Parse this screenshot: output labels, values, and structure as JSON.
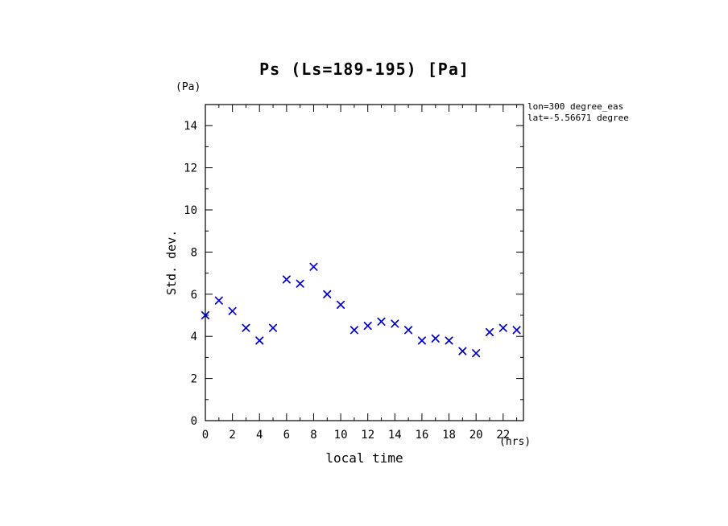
{
  "chart_data": {
    "type": "scatter",
    "title": "Ps (Ls=189-195) [Pa]",
    "xlabel": "local time",
    "ylabel": "Std. dev.",
    "x_unit": "(hrs)",
    "y_unit": "(Pa)",
    "annotations": [
      "lon=300 degree_eas",
      "lat=-5.56671 degree"
    ],
    "marker": "x",
    "marker_color": "#0000cc",
    "axis_color": "#000000",
    "xlim": [
      0,
      23.5
    ],
    "ylim": [
      0,
      15
    ],
    "x_major_ticks": [
      0,
      2,
      4,
      6,
      8,
      10,
      12,
      14,
      16,
      18,
      20,
      22
    ],
    "y_major_ticks": [
      0,
      2,
      4,
      6,
      8,
      10,
      12,
      14
    ],
    "grid": false,
    "legend": "none",
    "x": [
      0,
      1,
      2,
      3,
      4,
      5,
      6,
      7,
      8,
      9,
      10,
      11,
      12,
      13,
      14,
      15,
      16,
      17,
      18,
      19,
      20,
      21,
      22,
      23
    ],
    "y": [
      5.0,
      5.7,
      5.2,
      4.4,
      3.8,
      4.4,
      6.7,
      6.5,
      7.3,
      6.0,
      5.5,
      4.3,
      4.5,
      4.7,
      4.6,
      4.3,
      3.8,
      3.9,
      3.8,
      3.3,
      3.2,
      4.2,
      4.4,
      4.3
    ]
  }
}
